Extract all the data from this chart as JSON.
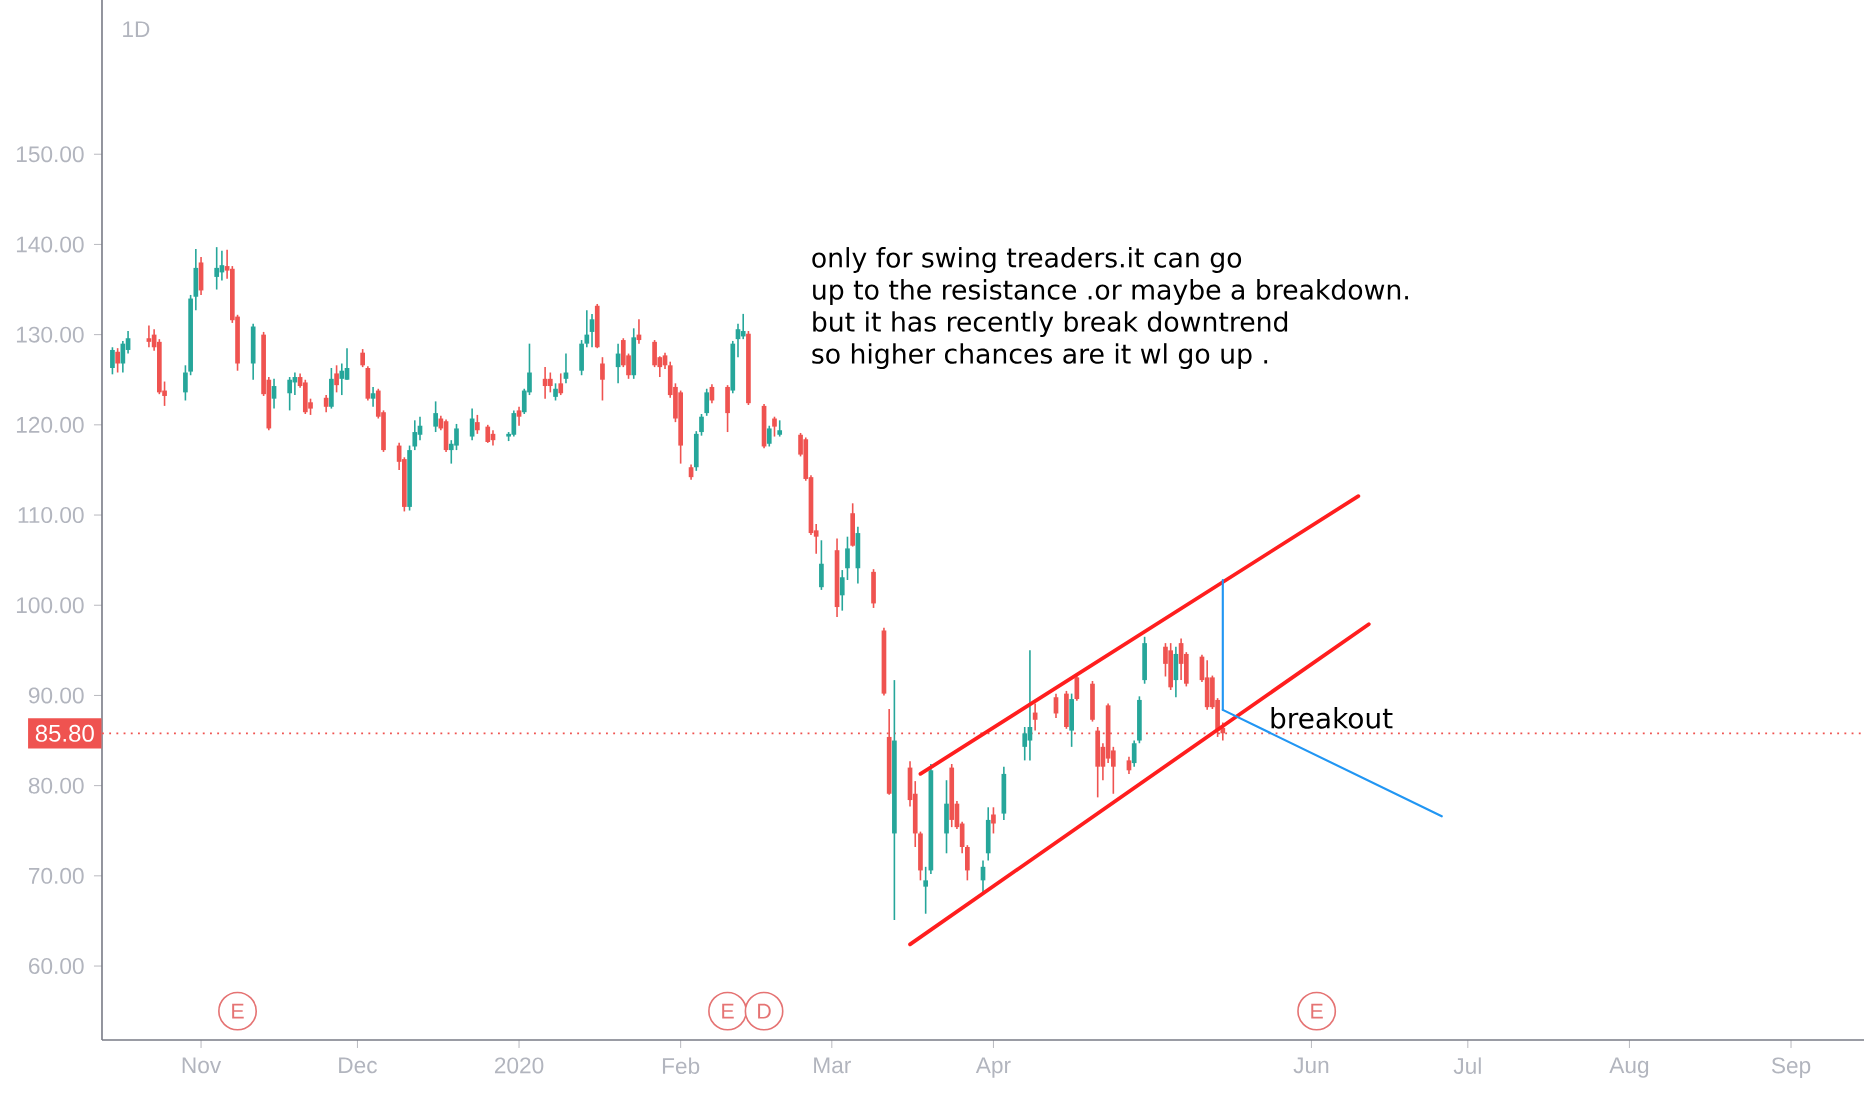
{
  "chart_data": {
    "type": "candlestick",
    "title": "1D",
    "xlim": [
      "2019-10-13",
      "2020-09-15"
    ],
    "ylim": [
      51.8,
      167.1
    ],
    "xticks": [
      {
        "value": "2019-11-01",
        "label": "Nov"
      },
      {
        "value": "2019-12-01",
        "label": "Dec"
      },
      {
        "value": "2020-01-01",
        "label": "2020"
      },
      {
        "value": "2020-02-01",
        "label": "Feb"
      },
      {
        "value": "2020-03-01",
        "label": "Mar"
      },
      {
        "value": "2020-04-01",
        "label": "Apr"
      },
      {
        "value": "2020-06-01",
        "label": "Jun"
      },
      {
        "value": "2020-07-01",
        "label": "Jul"
      },
      {
        "value": "2020-08-01",
        "label": "Aug"
      },
      {
        "value": "2020-09-01",
        "label": "Sep"
      }
    ],
    "yticks": [
      {
        "value": 60,
        "label": "60.00"
      },
      {
        "value": 70,
        "label": "70.00"
      },
      {
        "value": 80,
        "label": "80.00"
      },
      {
        "value": 90,
        "label": "90.00"
      },
      {
        "value": 100,
        "label": "100.00"
      },
      {
        "value": 110,
        "label": "110.00"
      },
      {
        "value": 120,
        "label": "120.00"
      },
      {
        "value": 130,
        "label": "130.00"
      },
      {
        "value": 140,
        "label": "140.00"
      },
      {
        "value": 150,
        "label": "150.00"
      }
    ],
    "x": [
      "2019-10-15",
      "2019-10-16",
      "2019-10-17",
      "2019-10-18",
      "2019-10-22",
      "2019-10-23",
      "2019-10-24",
      "2019-10-25",
      "2019-10-29",
      "2019-10-30",
      "2019-10-31",
      "2019-11-01",
      "2019-11-04",
      "2019-11-05",
      "2019-11-06",
      "2019-11-07",
      "2019-11-08",
      "2019-11-11",
      "2019-11-13",
      "2019-11-14",
      "2019-11-15",
      "2019-11-18",
      "2019-11-19",
      "2019-11-20",
      "2019-11-21",
      "2019-11-22",
      "2019-11-25",
      "2019-11-26",
      "2019-11-27",
      "2019-11-28",
      "2019-11-29",
      "2019-12-02",
      "2019-12-03",
      "2019-12-04",
      "2019-12-05",
      "2019-12-06",
      "2019-12-09",
      "2019-12-10",
      "2019-12-11",
      "2019-12-12",
      "2019-12-13",
      "2019-12-16",
      "2019-12-17",
      "2019-12-18",
      "2019-12-19",
      "2019-12-20",
      "2019-12-23",
      "2019-12-24",
      "2019-12-26",
      "2019-12-27",
      "2019-12-30",
      "2019-12-31",
      "2020-01-01",
      "2020-01-02",
      "2020-01-03",
      "2020-01-06",
      "2020-01-07",
      "2020-01-08",
      "2020-01-09",
      "2020-01-10",
      "2020-01-13",
      "2020-01-14",
      "2020-01-15",
      "2020-01-16",
      "2020-01-17",
      "2020-01-20",
      "2020-01-21",
      "2020-01-22",
      "2020-01-23",
      "2020-01-24",
      "2020-01-27",
      "2020-01-28",
      "2020-01-29",
      "2020-01-30",
      "2020-01-31",
      "2020-02-01",
      "2020-02-03",
      "2020-02-04",
      "2020-02-05",
      "2020-02-06",
      "2020-02-07",
      "2020-02-10",
      "2020-02-11",
      "2020-02-12",
      "2020-02-13",
      "2020-02-14",
      "2020-02-17",
      "2020-02-18",
      "2020-02-19",
      "2020-02-20",
      "2020-02-24",
      "2020-02-25",
      "2020-02-26",
      "2020-02-27",
      "2020-02-28",
      "2020-03-02",
      "2020-03-03",
      "2020-03-04",
      "2020-03-05",
      "2020-03-06",
      "2020-03-09",
      "2020-03-11",
      "2020-03-12",
      "2020-03-13",
      "2020-03-16",
      "2020-03-17",
      "2020-03-18",
      "2020-03-19",
      "2020-03-20",
      "2020-03-23",
      "2020-03-24",
      "2020-03-25",
      "2020-03-26",
      "2020-03-27",
      "2020-03-30",
      "2020-03-31",
      "2020-04-01",
      "2020-04-03",
      "2020-04-07",
      "2020-04-08",
      "2020-04-09",
      "2020-04-13",
      "2020-04-15",
      "2020-04-16",
      "2020-04-17",
      "2020-04-20",
      "2020-04-21",
      "2020-04-22",
      "2020-04-23",
      "2020-04-24",
      "2020-04-27",
      "2020-04-28",
      "2020-04-29",
      "2020-04-30",
      "2020-05-04",
      "2020-05-05",
      "2020-05-06",
      "2020-05-07",
      "2020-05-08",
      "2020-05-11",
      "2020-05-12",
      "2020-05-13",
      "2020-05-14",
      "2020-05-15"
    ],
    "ohlc": [
      [
        126.3,
        128.6,
        125.6,
        128.3
      ],
      [
        128.1,
        128.5,
        125.8,
        126.8
      ],
      [
        126.8,
        129.3,
        125.8,
        129.0
      ],
      [
        128.3,
        130.4,
        127.9,
        129.6
      ],
      [
        129.6,
        131.0,
        128.6,
        129.2
      ],
      [
        130.0,
        130.6,
        128.2,
        128.6
      ],
      [
        129.2,
        129.5,
        123.4,
        123.6
      ],
      [
        123.8,
        124.8,
        122.1,
        123.2
      ],
      [
        123.6,
        126.6,
        122.7,
        125.8
      ],
      [
        125.9,
        134.4,
        125.5,
        134.0
      ],
      [
        134.2,
        139.5,
        132.7,
        137.4
      ],
      [
        138.0,
        138.6,
        134.4,
        134.9
      ],
      [
        136.4,
        139.7,
        135.0,
        137.4
      ],
      [
        136.9,
        139.3,
        136.0,
        137.7
      ],
      [
        137.6,
        139.4,
        136.2,
        137.1
      ],
      [
        137.3,
        137.6,
        131.3,
        131.6
      ],
      [
        132.0,
        132.2,
        126.0,
        126.8
      ],
      [
        126.8,
        131.2,
        125.0,
        130.9
      ],
      [
        130.0,
        130.3,
        123.2,
        123.4
      ],
      [
        125.0,
        125.3,
        119.4,
        119.6
      ],
      [
        122.9,
        125.1,
        121.8,
        124.3
      ],
      [
        123.5,
        125.3,
        121.6,
        125.0
      ],
      [
        124.7,
        125.8,
        123.3,
        125.3
      ],
      [
        125.3,
        125.7,
        124.1,
        124.3
      ],
      [
        124.7,
        125.0,
        121.2,
        121.4
      ],
      [
        122.5,
        122.9,
        121.1,
        121.8
      ],
      [
        123.0,
        123.3,
        121.4,
        122.0
      ],
      [
        122.0,
        126.3,
        121.8,
        125.1
      ],
      [
        125.7,
        126.6,
        123.6,
        124.4
      ],
      [
        125.1,
        126.8,
        123.3,
        126.0
      ],
      [
        125.0,
        128.5,
        125.0,
        126.3
      ],
      [
        128.0,
        128.4,
        126.4,
        126.6
      ],
      [
        126.3,
        126.5,
        122.7,
        122.9
      ],
      [
        122.9,
        124.2,
        122.0,
        123.5
      ],
      [
        123.8,
        124.0,
        120.7,
        120.9
      ],
      [
        121.4,
        121.6,
        117.0,
        117.2
      ],
      [
        117.7,
        118.0,
        115.0,
        115.9
      ],
      [
        116.2,
        116.4,
        110.4,
        110.9
      ],
      [
        110.9,
        117.7,
        110.5,
        117.2
      ],
      [
        117.6,
        120.5,
        117.2,
        119.2
      ],
      [
        118.9,
        120.9,
        118.3,
        119.9
      ],
      [
        119.8,
        122.6,
        119.2,
        121.3
      ],
      [
        120.7,
        121.0,
        119.4,
        119.6
      ],
      [
        120.4,
        120.6,
        117.0,
        117.2
      ],
      [
        117.2,
        118.3,
        115.7,
        117.9
      ],
      [
        117.7,
        120.1,
        117.2,
        119.6
      ],
      [
        118.7,
        121.8,
        118.3,
        120.7
      ],
      [
        120.3,
        121.1,
        119.0,
        119.4
      ],
      [
        119.8,
        120.0,
        118.0,
        118.1
      ],
      [
        119.0,
        119.4,
        117.7,
        118.3
      ],
      [
        118.7,
        119.2,
        118.2,
        119.0
      ],
      [
        118.9,
        121.6,
        118.7,
        121.3
      ],
      [
        121.6,
        122.0,
        119.9,
        120.9
      ],
      [
        121.4,
        124.0,
        121.2,
        123.8
      ],
      [
        123.6,
        129.0,
        123.3,
        125.8
      ],
      [
        125.1,
        126.4,
        122.9,
        124.3
      ],
      [
        125.1,
        125.8,
        123.6,
        124.3
      ],
      [
        123.1,
        124.6,
        122.7,
        124.0
      ],
      [
        124.6,
        125.7,
        123.3,
        123.5
      ],
      [
        125.1,
        127.9,
        124.6,
        125.8
      ],
      [
        126.0,
        129.4,
        125.5,
        129.0
      ],
      [
        129.0,
        132.7,
        128.6,
        130.0
      ],
      [
        130.3,
        132.3,
        128.6,
        131.7
      ],
      [
        133.2,
        133.4,
        128.5,
        128.6
      ],
      [
        126.8,
        127.5,
        122.7,
        125.0
      ],
      [
        126.4,
        129.0,
        124.6,
        127.9
      ],
      [
        129.4,
        129.6,
        126.4,
        126.6
      ],
      [
        127.7,
        127.9,
        125.1,
        125.5
      ],
      [
        125.5,
        130.7,
        125.1,
        129.7
      ],
      [
        130.0,
        131.7,
        129.0,
        129.4
      ],
      [
        129.2,
        129.4,
        126.4,
        126.6
      ],
      [
        127.5,
        127.6,
        125.3,
        126.4
      ],
      [
        127.7,
        128.0,
        126.2,
        126.6
      ],
      [
        126.6,
        127.0,
        123.0,
        123.3
      ],
      [
        124.2,
        124.6,
        120.3,
        120.7
      ],
      [
        123.6,
        123.8,
        115.7,
        117.7
      ],
      [
        115.3,
        115.6,
        113.9,
        114.2
      ],
      [
        115.3,
        119.3,
        114.9,
        119.0
      ],
      [
        119.2,
        121.2,
        118.8,
        120.9
      ],
      [
        121.3,
        124.0,
        121.0,
        123.6
      ],
      [
        124.2,
        124.5,
        122.4,
        122.7
      ],
      [
        124.2,
        124.4,
        119.2,
        121.3
      ],
      [
        123.8,
        129.3,
        123.5,
        129.0
      ],
      [
        129.5,
        131.2,
        127.5,
        130.6
      ],
      [
        129.8,
        132.3,
        129.5,
        130.4
      ],
      [
        130.1,
        130.4,
        122.2,
        122.4
      ],
      [
        122.1,
        122.3,
        117.4,
        117.6
      ],
      [
        117.9,
        119.9,
        117.6,
        119.6
      ],
      [
        120.7,
        120.9,
        118.7,
        119.8
      ],
      [
        118.9,
        120.5,
        118.7,
        119.4
      ],
      [
        118.9,
        119.1,
        116.5,
        116.7
      ],
      [
        118.4,
        118.6,
        113.8,
        114.0
      ],
      [
        114.2,
        114.4,
        107.8,
        108.0
      ],
      [
        108.3,
        109.0,
        105.7,
        107.6
      ],
      [
        102.0,
        107.2,
        101.7,
        104.6
      ],
      [
        106.1,
        107.4,
        98.7,
        99.8
      ],
      [
        101.1,
        103.9,
        99.4,
        103.1
      ],
      [
        104.1,
        107.6,
        102.8,
        106.3
      ],
      [
        110.2,
        111.3,
        106.5,
        106.6
      ],
      [
        104.1,
        108.7,
        102.4,
        108.0
      ],
      [
        103.7,
        104.0,
        99.7,
        100.2
      ],
      [
        97.2,
        97.5,
        90.0,
        90.2
      ],
      [
        85.4,
        88.5,
        79.0,
        79.1
      ],
      [
        74.7,
        91.7,
        65.1,
        85.0
      ],
      [
        82.0,
        82.7,
        77.7,
        78.4
      ],
      [
        79.1,
        80.5,
        73.2,
        74.7
      ],
      [
        74.7,
        74.9,
        69.5,
        70.6
      ],
      [
        68.8,
        71.0,
        65.8,
        69.5
      ],
      [
        70.6,
        82.4,
        70.2,
        81.7
      ],
      [
        74.7,
        80.6,
        72.5,
        78.0
      ],
      [
        82.0,
        82.4,
        75.4,
        76.2
      ],
      [
        78.0,
        78.3,
        75.2,
        75.4
      ],
      [
        75.8,
        76.0,
        72.5,
        73.2
      ],
      [
        73.2,
        73.4,
        69.5,
        70.6
      ],
      [
        69.5,
        71.7,
        68.0,
        71.0
      ],
      [
        72.5,
        77.6,
        71.7,
        76.2
      ],
      [
        76.8,
        77.6,
        74.7,
        75.8
      ],
      [
        76.9,
        82.1,
        76.2,
        81.3
      ],
      [
        84.3,
        86.5,
        82.8,
        85.8
      ],
      [
        85.0,
        95.0,
        82.8,
        86.5
      ],
      [
        88.1,
        89.1,
        86.1,
        87.3
      ],
      [
        89.8,
        90.2,
        87.5,
        88.0
      ],
      [
        90.2,
        90.5,
        86.3,
        86.5
      ],
      [
        86.1,
        90.2,
        84.3,
        89.6
      ],
      [
        92.0,
        92.4,
        89.4,
        89.6
      ],
      [
        91.3,
        91.6,
        87.1,
        87.3
      ],
      [
        86.1,
        86.5,
        78.7,
        82.1
      ],
      [
        84.3,
        84.7,
        80.6,
        82.1
      ],
      [
        88.9,
        89.1,
        82.5,
        83.0
      ],
      [
        83.9,
        84.3,
        79.1,
        82.1
      ],
      [
        82.8,
        83.2,
        81.3,
        81.7
      ],
      [
        82.5,
        85.0,
        82.1,
        84.7
      ],
      [
        85.0,
        89.9,
        84.7,
        89.5
      ],
      [
        91.7,
        96.5,
        91.3,
        95.8
      ],
      [
        95.4,
        95.8,
        92.1,
        93.5
      ],
      [
        95.0,
        95.8,
        90.6,
        90.9
      ],
      [
        91.7,
        95.4,
        89.8,
        94.6
      ],
      [
        95.8,
        96.3,
        91.7,
        93.5
      ],
      [
        94.6,
        94.8,
        91.0,
        91.3
      ],
      [
        94.3,
        94.5,
        91.5,
        91.7
      ],
      [
        92.0,
        93.9,
        88.4,
        88.7
      ],
      [
        92.0,
        92.2,
        88.5,
        88.7
      ],
      [
        89.5,
        89.7,
        85.4,
        86.1
      ],
      [
        86.4,
        87.0,
        85.0,
        85.8
      ]
    ],
    "colors": [
      "#26a69a",
      "#ef5350",
      "#26a69a",
      "#26a69a",
      "#ef5350",
      "#ef5350",
      "#ef5350",
      "#ef5350",
      "#26a69a",
      "#26a69a",
      "#26a69a",
      "#ef5350",
      "#26a69a",
      "#26a69a",
      "#ef5350",
      "#ef5350",
      "#ef5350",
      "#26a69a",
      "#ef5350",
      "#ef5350",
      "#26a69a",
      "#26a69a",
      "#26a69a",
      "#ef5350",
      "#ef5350",
      "#ef5350",
      "#ef5350",
      "#26a69a",
      "#ef5350",
      "#26a69a",
      "#26a69a",
      "#ef5350",
      "#ef5350",
      "#26a69a",
      "#ef5350",
      "#ef5350",
      "#ef5350",
      "#ef5350",
      "#26a69a",
      "#26a69a",
      "#26a69a",
      "#26a69a",
      "#ef5350",
      "#ef5350",
      "#26a69a",
      "#26a69a",
      "#26a69a",
      "#ef5350",
      "#ef5350",
      "#ef5350",
      "#26a69a",
      "#26a69a",
      "#ef5350",
      "#26a69a",
      "#26a69a",
      "#ef5350",
      "#ef5350",
      "#26a69a",
      "#ef5350",
      "#26a69a",
      "#26a69a",
      "#26a69a",
      "#26a69a",
      "#ef5350",
      "#ef5350",
      "#26a69a",
      "#ef5350",
      "#ef5350",
      "#26a69a",
      "#ef5350",
      "#ef5350",
      "#ef5350",
      "#ef5350",
      "#ef5350",
      "#ef5350",
      "#ef5350",
      "#ef5350",
      "#26a69a",
      "#26a69a",
      "#26a69a",
      "#ef5350",
      "#ef5350",
      "#26a69a",
      "#26a69a",
      "#26a69a",
      "#ef5350",
      "#ef5350",
      "#26a69a",
      "#ef5350",
      "#26a69a",
      "#ef5350",
      "#ef5350",
      "#ef5350",
      "#ef5350",
      "#26a69a",
      "#ef5350",
      "#26a69a",
      "#26a69a",
      "#ef5350",
      "#26a69a",
      "#ef5350",
      "#ef5350",
      "#ef5350",
      "#26a69a",
      "#ef5350",
      "#ef5350",
      "#ef5350",
      "#26a69a",
      "#26a69a",
      "#26a69a",
      "#ef5350",
      "#ef5350",
      "#ef5350",
      "#ef5350",
      "#26a69a",
      "#26a69a",
      "#ef5350",
      "#26a69a",
      "#26a69a",
      "#26a69a",
      "#ef5350",
      "#ef5350",
      "#ef5350",
      "#26a69a",
      "#ef5350",
      "#ef5350",
      "#ef5350",
      "#ef5350",
      "#ef5350",
      "#ef5350",
      "#ef5350",
      "#26a69a",
      "#26a69a",
      "#26a69a",
      "#ef5350",
      "#ef5350",
      "#26a69a",
      "#ef5350",
      "#ef5350",
      "#ef5350",
      "#ef5350",
      "#ef5350",
      "#ef5350",
      "#ef5350"
    ],
    "series": [
      {
        "type": "line",
        "color": "#ff1e1e",
        "x": [
          "2020-03-18",
          "2020-06-10"
        ],
        "values": [
          81.3,
          112.1
        ]
      },
      {
        "type": "line",
        "color": "#ff1e1e",
        "x": [
          "2020-03-16",
          "2020-06-12"
        ],
        "values": [
          62.4,
          97.9
        ]
      },
      {
        "type": "line",
        "color": "#2196f3",
        "x": [
          "2020-05-15",
          "2020-05-15"
        ],
        "values": [
          88.4,
          102.8
        ]
      },
      {
        "type": "line",
        "color": "#2196f3",
        "name": "breakout",
        "x": [
          "2020-05-15",
          "2020-06-26"
        ],
        "values": [
          88.4,
          76.6
        ]
      }
    ],
    "ref_lines": [
      {
        "axis": "y",
        "value": 85.8,
        "label": "85.80",
        "color": "#ef5350",
        "line_style": "dotted"
      }
    ],
    "annotations": [
      "only for swing treaders.it can go",
      "up to the resistance .or maybe a breakdown.",
      "but it has recently break downtrend",
      "so higher chances are it wl go up .",
      {
        "text": "E",
        "x": "2019-11-08",
        "y": 55
      },
      {
        "text": "E",
        "x": "2020-02-10",
        "y": 55
      },
      {
        "text": "D",
        "x": "2020-02-17",
        "y": 55
      },
      {
        "text": "E",
        "x": "2020-06-02",
        "y": 55
      }
    ]
  }
}
